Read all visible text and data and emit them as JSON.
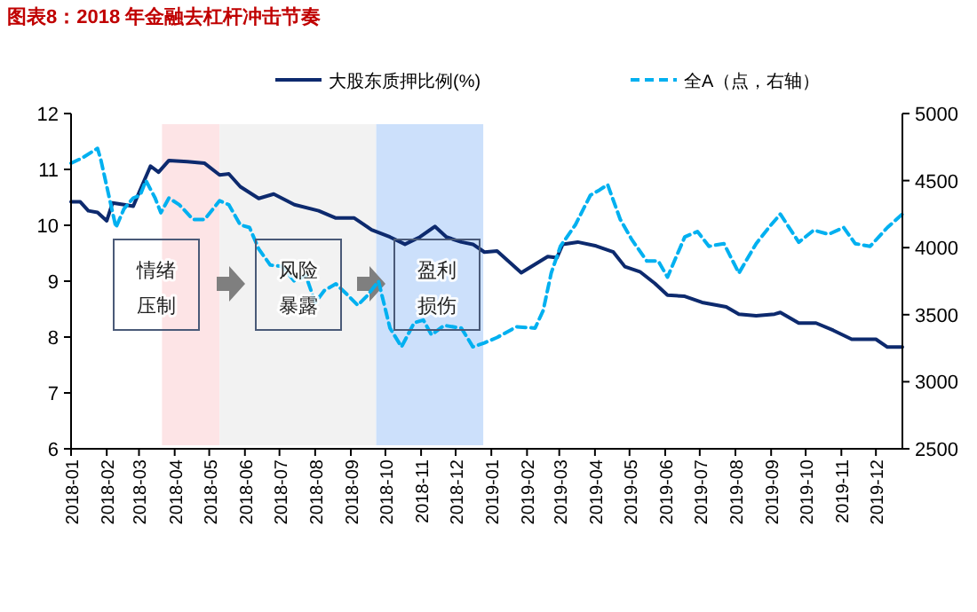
{
  "chart_data": {
    "type": "line",
    "title": "图表8：2018 年金融去杠杆冲击节奏",
    "xlim": [
      "2018-01-01",
      "2019-12-24"
    ],
    "xticks": [
      "2018-01",
      "2018-02",
      "2018-03",
      "2018-04",
      "2018-05",
      "2018-06",
      "2018-07",
      "2018-08",
      "2018-09",
      "2018-10",
      "2018-11",
      "2018-12",
      "2019-01",
      "2019-02",
      "2019-03",
      "2019-04",
      "2019-05",
      "2019-06",
      "2019-07",
      "2019-08",
      "2019-09",
      "2019-10",
      "2019-11",
      "2019-12"
    ],
    "ylim": [
      6,
      12
    ],
    "yticks": [
      6,
      7,
      8,
      9,
      10,
      11,
      12
    ],
    "y2lim": [
      2500,
      5000
    ],
    "y2ticks": [
      2500,
      3000,
      3500,
      4000,
      4500,
      5000
    ],
    "legend": "top",
    "grid": false,
    "bands": [
      {
        "axis": "x",
        "from": "2018-03-21",
        "to": "2018-05-10",
        "label": null,
        "color": "#fde4e6"
      },
      {
        "axis": "x",
        "from": "2018-05-10",
        "to": "2018-09-23",
        "label": null,
        "color": "#f2f2f2"
      },
      {
        "axis": "x",
        "from": "2018-09-23",
        "to": "2018-12-25",
        "label": null,
        "color": "#cce0fb"
      }
    ],
    "annotations": [
      "情绪压制",
      "风险暴露",
      "盈利损伤"
    ],
    "series": [
      {
        "name": "大股东质押比例(%)",
        "color": "#0d2a6e",
        "line_style": "solid",
        "x": [
          "2018-01-01",
          "2018-01-09",
          "2018-01-16",
          "2018-01-24",
          "2018-02-01",
          "2018-02-06",
          "2018-02-16",
          "2018-02-24",
          "2018-03-02",
          "2018-03-11",
          "2018-03-18",
          "2018-03-27",
          "2018-04-12",
          "2018-04-27",
          "2018-05-10",
          "2018-05-18",
          "2018-05-28",
          "2018-06-13",
          "2018-06-26",
          "2018-07-14",
          "2018-08-04",
          "2018-08-19",
          "2018-09-04",
          "2018-09-19",
          "2018-10-05",
          "2018-10-18",
          "2018-10-31",
          "2018-11-13",
          "2018-11-23",
          "2018-12-06",
          "2018-12-16",
          "2018-12-26",
          "2019-01-06",
          "2019-01-27",
          "2019-02-19",
          "2019-02-27",
          "2019-03-04",
          "2019-03-17",
          "2019-04-02",
          "2019-04-17",
          "2019-04-27",
          "2019-05-10",
          "2019-05-23",
          "2019-06-03",
          "2019-06-18",
          "2019-07-03",
          "2019-07-24",
          "2019-08-04",
          "2019-08-19",
          "2019-09-04",
          "2019-09-09",
          "2019-09-25",
          "2019-10-10",
          "2019-10-25",
          "2019-11-10",
          "2019-12-01",
          "2019-12-11",
          "2019-12-24"
        ],
        "values": [
          10.42,
          10.42,
          10.26,
          10.23,
          10.08,
          10.4,
          10.37,
          10.34,
          10.63,
          11.06,
          10.95,
          11.16,
          11.14,
          11.11,
          10.9,
          10.92,
          10.69,
          10.48,
          10.56,
          10.37,
          10.26,
          10.13,
          10.13,
          9.92,
          9.79,
          9.66,
          9.79,
          9.98,
          9.79,
          9.7,
          9.66,
          9.52,
          9.54,
          9.15,
          9.44,
          9.42,
          9.66,
          9.7,
          9.63,
          9.52,
          9.26,
          9.17,
          8.96,
          8.75,
          8.73,
          8.62,
          8.54,
          8.41,
          8.38,
          8.41,
          8.44,
          8.25,
          8.25,
          8.12,
          7.96,
          7.96,
          7.82,
          7.82
        ]
      },
      {
        "name": "全A（点，右轴）",
        "color": "#00b0f0",
        "axis": "y2",
        "line_style": "dashed",
        "x": [
          "2018-01-01",
          "2018-01-11",
          "2018-01-24",
          "2018-01-27",
          "2018-02-09",
          "2018-02-16",
          "2018-02-24",
          "2018-03-02",
          "2018-03-07",
          "2018-03-15",
          "2018-03-20",
          "2018-03-27",
          "2018-04-05",
          "2018-04-17",
          "2018-04-27",
          "2018-05-10",
          "2018-05-18",
          "2018-05-28",
          "2018-06-05",
          "2018-06-13",
          "2018-06-23",
          "2018-07-03",
          "2018-07-14",
          "2018-07-24",
          "2018-08-01",
          "2018-08-09",
          "2018-08-19",
          "2018-08-30",
          "2018-09-07",
          "2018-09-15",
          "2018-09-25",
          "2018-10-05",
          "2018-10-15",
          "2018-10-26",
          "2018-11-03",
          "2018-11-10",
          "2018-11-21",
          "2018-12-06",
          "2018-12-16",
          "2018-12-26",
          "2019-01-06",
          "2019-01-23",
          "2019-02-08",
          "2019-02-15",
          "2019-02-22",
          "2019-03-02",
          "2019-03-15",
          "2019-03-28",
          "2019-04-05",
          "2019-04-12",
          "2019-04-23",
          "2019-05-03",
          "2019-05-16",
          "2019-05-26",
          "2019-06-03",
          "2019-06-18",
          "2019-06-29",
          "2019-07-09",
          "2019-07-22",
          "2019-08-04",
          "2019-08-19",
          "2019-08-30",
          "2019-09-09",
          "2019-09-25",
          "2019-10-08",
          "2019-10-21",
          "2019-11-03",
          "2019-11-13",
          "2019-11-26",
          "2019-12-11",
          "2019-12-24"
        ],
        "values": [
          4630,
          4670,
          4740,
          4650,
          4150,
          4290,
          4370,
          4390,
          4500,
          4370,
          4260,
          4370,
          4320,
          4210,
          4210,
          4350,
          4320,
          4170,
          4150,
          3990,
          3870,
          3860,
          3750,
          3790,
          3590,
          3680,
          3730,
          3640,
          3570,
          3640,
          3750,
          3400,
          3260,
          3440,
          3460,
          3350,
          3420,
          3400,
          3260,
          3290,
          3330,
          3410,
          3400,
          3530,
          3810,
          4010,
          4170,
          4390,
          4430,
          4470,
          4210,
          4060,
          3900,
          3900,
          3780,
          4080,
          4120,
          4010,
          4030,
          3810,
          4030,
          4150,
          4250,
          4040,
          4130,
          4100,
          4150,
          4030,
          4010,
          4150,
          4250
        ]
      }
    ]
  }
}
